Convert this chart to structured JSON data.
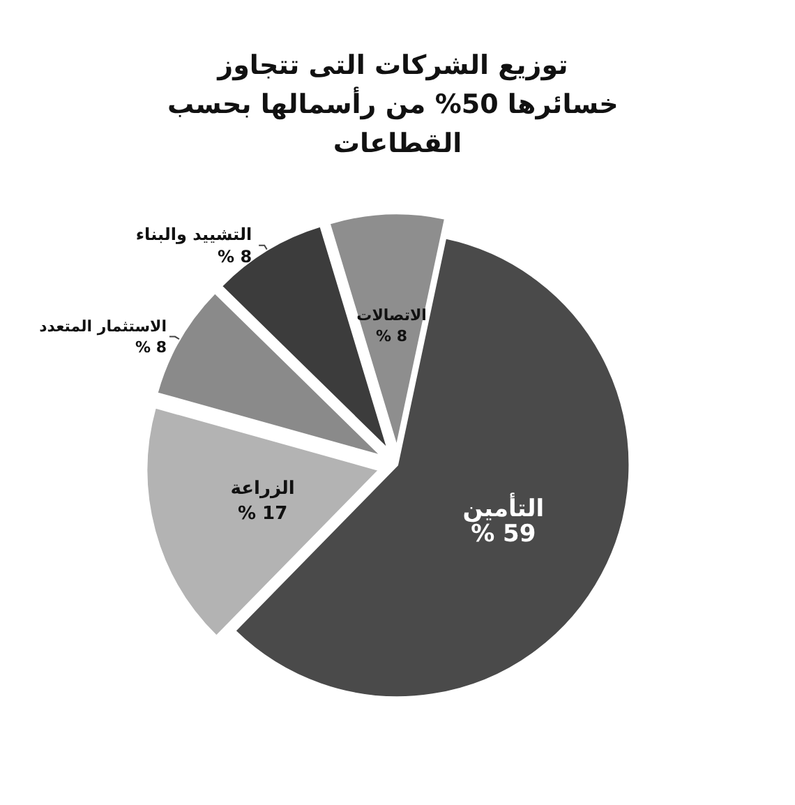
{
  "chart_data": {
    "type": "pie",
    "title": "توزيع الشركات التى تتجاوز خسائرها 50% من رأسمالها بحسب القطاعات",
    "categories": [
      "التأمين",
      "الزراعة",
      "الاستثمار المتعدد",
      "التشييد والبناء",
      "الاتصالات"
    ],
    "values": [
      59,
      17,
      8,
      8,
      8
    ],
    "value_labels": [
      "% 59",
      "% 17",
      "% 8",
      "% 8",
      "% 8"
    ],
    "colors": [
      "#4a4a4a",
      "#b3b3b3",
      "#8a8a8a",
      "#3c3c3c",
      "#8e8e8e"
    ],
    "legend": false
  }
}
